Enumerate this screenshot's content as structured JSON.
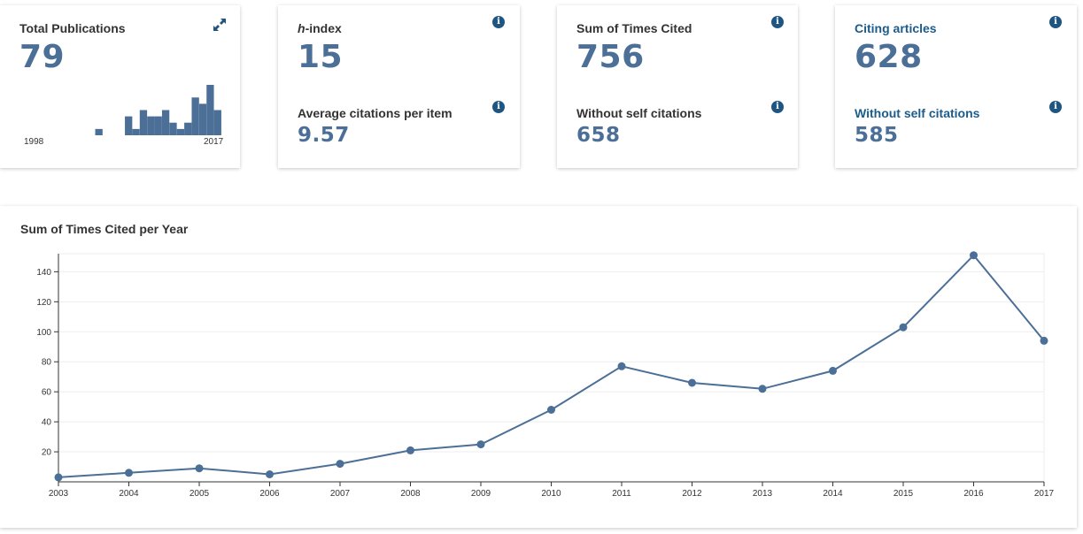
{
  "cards": {
    "total_publications": {
      "title": "Total Publications",
      "value": "79",
      "start_year": "1998",
      "end_year": "2017"
    },
    "h_index": {
      "title_em": "h",
      "title_rest": "-index",
      "value": "15",
      "sub_title": "Average citations per item",
      "sub_value": "9.57"
    },
    "times_cited": {
      "title": "Sum of Times Cited",
      "value": "756",
      "sub_title": "Without self citations",
      "sub_value": "658"
    },
    "citing_articles": {
      "title": "Citing articles",
      "value": "628",
      "sub_title": "Without self citations",
      "sub_value": "585"
    }
  },
  "icons": {
    "info": "i",
    "expand": "expand-arrows-icon"
  },
  "colors": {
    "accent": "#4b6f96",
    "link": "#1b5c8c",
    "info_icon": "#1f5581"
  },
  "chart_data": [
    {
      "type": "bar",
      "title": "",
      "values": [
        0,
        0,
        0,
        0,
        1,
        0,
        0,
        0,
        3,
        1,
        4,
        3,
        3,
        4,
        2,
        1,
        2,
        6,
        5,
        8,
        4
      ]
    },
    {
      "type": "line",
      "title": "Sum of Times Cited per Year",
      "xlabel": "",
      "ylabel": "",
      "x": [
        "2003",
        "2004",
        "2005",
        "2006",
        "2007",
        "2008",
        "2009",
        "2010",
        "2011",
        "2012",
        "2013",
        "2014",
        "2015",
        "2016",
        "2017"
      ],
      "series": [
        {
          "values": [
            3,
            6,
            9,
            5,
            12,
            21,
            25,
            48,
            77,
            66,
            62,
            74,
            103,
            151,
            94
          ]
        }
      ],
      "yticks": [
        20,
        40,
        60,
        80,
        100,
        120,
        140
      ],
      "ylim": [
        0,
        152
      ],
      "grid": true,
      "legend": "none"
    }
  ]
}
